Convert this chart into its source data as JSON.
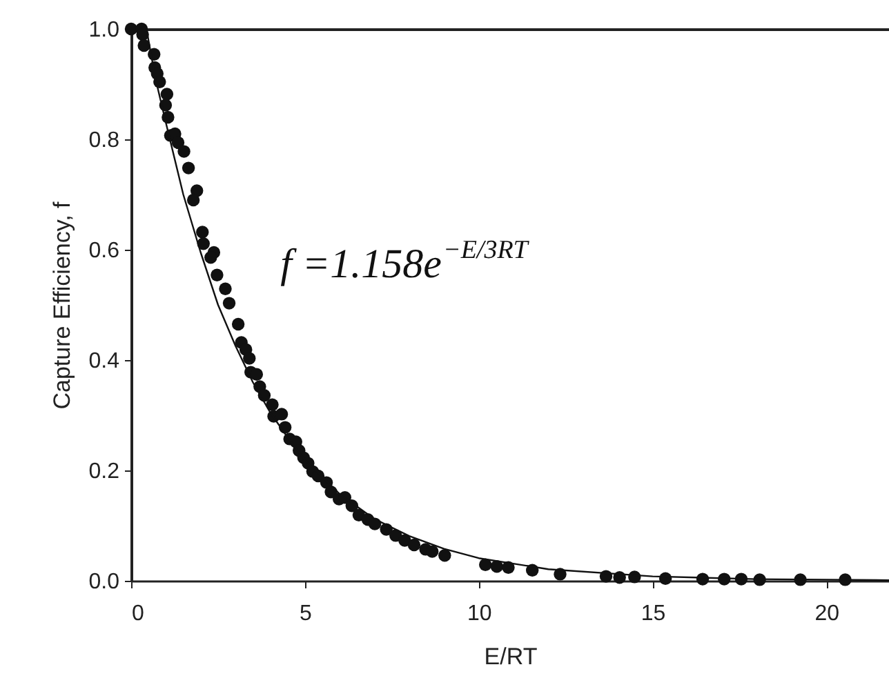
{
  "chart_data": {
    "type": "scatter",
    "xlabel": "E/RT",
    "ylabel": "Capture Efficiency, f",
    "xlim": [
      0,
      21.8
    ],
    "ylim": [
      0,
      1
    ],
    "xticks": [
      0,
      5,
      10,
      15,
      20
    ],
    "yticks": [
      {
        "value": 0,
        "label": "0.0"
      },
      {
        "value": 0.2,
        "label": "0.2"
      },
      {
        "value": 0.4,
        "label": "0.4"
      },
      {
        "value": 0.6,
        "label": "0.6"
      },
      {
        "value": 0.8,
        "label": "0.8"
      },
      {
        "value": 1,
        "label": "1.0"
      }
    ],
    "grid": false,
    "annotations": [
      "f =1.158e$^{−E/3RT}$"
    ],
    "series": [
      {
        "color": "#111111",
        "marker": "circle",
        "x": [
          0,
          0.3,
          0.33,
          0.37,
          0.66,
          0.68,
          0.75,
          0.82,
          1.03,
          0.99,
          1.06,
          1.13,
          1.26,
          1.35,
          1.52,
          1.65,
          1.89,
          1.79,
          2.05,
          2.08,
          2.38,
          2.29,
          2.47,
          2.71,
          2.82,
          3.08,
          3.17,
          3.3,
          3.4,
          3.44,
          3.61,
          3.7,
          3.83,
          4.06,
          4.1,
          4.33,
          4.43,
          4.56,
          4.74,
          4.83,
          4.96,
          5.09,
          5.22,
          5.38,
          5.62,
          5.75,
          5.98,
          6.15,
          6.35,
          6.55,
          6.81,
          7.01,
          7.34,
          7.61,
          7.87,
          8.14,
          8.47,
          8.66,
          9.02,
          10.19,
          10.52,
          10.85,
          11.54,
          12.34,
          13.66,
          14.05,
          14.48,
          15.37,
          16.44,
          17.06,
          17.55,
          18.08,
          19.25,
          20.54
        ],
        "values": [
          1.0,
          1.0,
          0.99,
          0.97,
          0.954,
          0.93,
          0.919,
          0.904,
          0.882,
          0.862,
          0.84,
          0.807,
          0.81,
          0.794,
          0.778,
          0.748,
          0.707,
          0.69,
          0.632,
          0.611,
          0.595,
          0.586,
          0.554,
          0.529,
          0.503,
          0.465,
          0.432,
          0.419,
          0.403,
          0.378,
          0.374,
          0.352,
          0.336,
          0.319,
          0.298,
          0.302,
          0.278,
          0.257,
          0.252,
          0.236,
          0.223,
          0.213,
          0.198,
          0.19,
          0.178,
          0.161,
          0.148,
          0.151,
          0.136,
          0.119,
          0.111,
          0.103,
          0.093,
          0.082,
          0.073,
          0.065,
          0.057,
          0.053,
          0.046,
          0.029,
          0.026,
          0.024,
          0.019,
          0.012,
          0.008,
          0.006,
          0.007,
          0.004,
          0.003,
          0.003,
          0.003,
          0.002,
          0.002,
          0.002
        ]
      },
      {
        "type": "line",
        "color": "#111111",
        "line_style": "solid",
        "marker": "none",
        "x": [
          0.44,
          0.7,
          1,
          1.5,
          2,
          2.5,
          3,
          3.5,
          4,
          4.5,
          5,
          6,
          7,
          8,
          9,
          10,
          12,
          15,
          18,
          21.8
        ],
        "values": [
          1.0,
          0.91,
          0.83,
          0.7,
          0.595,
          0.5,
          0.426,
          0.36,
          0.305,
          0.26,
          0.219,
          0.157,
          0.112,
          0.081,
          0.058,
          0.041,
          0.021,
          0.008,
          0.003,
          0.001
        ]
      }
    ]
  }
}
